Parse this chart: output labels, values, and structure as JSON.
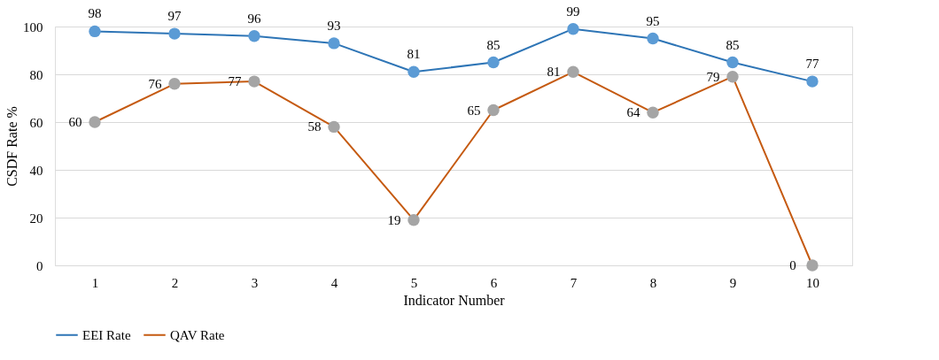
{
  "chart_data": {
    "type": "line",
    "xlabel": "Indicator Number",
    "ylabel": "CSDF Rate %",
    "categories": [
      "1",
      "2",
      "3",
      "4",
      "5",
      "6",
      "7",
      "8",
      "9",
      "10"
    ],
    "series": [
      {
        "name": "EEI Rate",
        "color": "#2e75b6",
        "colors": [
          "#5b9bd5",
          "#5b9bd5",
          "#5b9bd5",
          "#5b9bd5",
          "#5b9bd5",
          "#5b9bd5",
          "#5b9bd5",
          "#5b9bd5",
          "#5b9bd5",
          "#5b9bd5"
        ],
        "values": [
          98,
          97,
          96,
          93,
          81,
          85,
          99,
          95,
          85,
          77
        ]
      },
      {
        "name": "QAV Rate",
        "color": "#c55a11",
        "colors": [
          "#a5a5a5",
          "#a5a5a5",
          "#a5a5a5",
          "#a5a5a5",
          "#a5a5a5",
          "#a5a5a5",
          "#a5a5a5",
          "#a5a5a5",
          "#a5a5a5",
          "#a5a5a5"
        ],
        "values": [
          60,
          76,
          77,
          58,
          19,
          65,
          81,
          64,
          79,
          0
        ]
      }
    ],
    "ylim": [
      0,
      100
    ],
    "yticks": [
      0,
      20,
      40,
      60,
      80,
      100
    ],
    "grid": "y",
    "legend": "bottom",
    "marker": "circle",
    "line_style": "solid",
    "data_labels": true
  }
}
